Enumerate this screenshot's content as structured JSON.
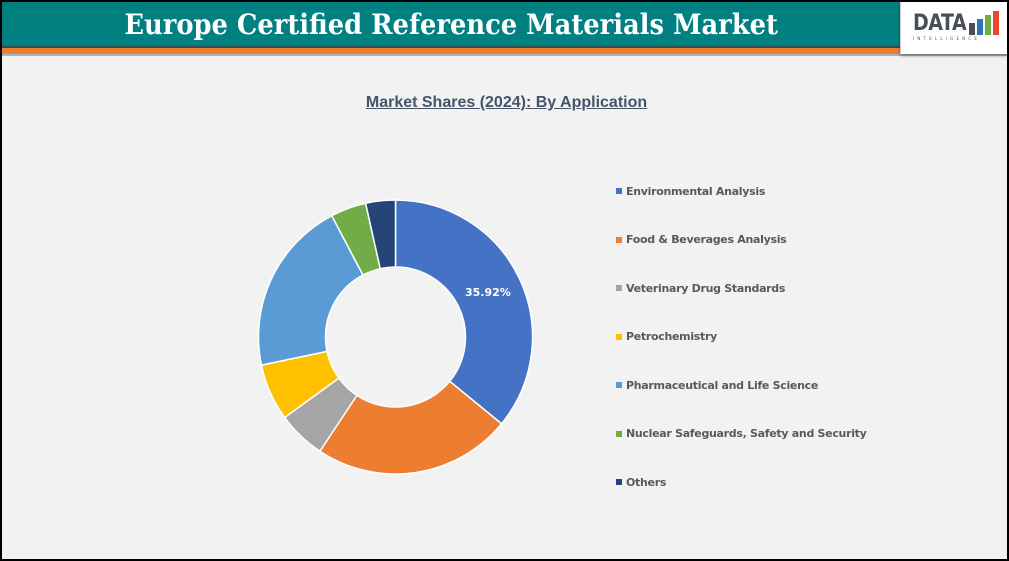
{
  "header": {
    "title": "Europe Certified Reference Materials Market",
    "logo": {
      "main": "DATA",
      "sub": "INTELLIGENCE"
    }
  },
  "colors": {
    "header_bg": "#008080",
    "accent_orange": "#ed7d31",
    "background": "#f2f2f2"
  },
  "chart_data": {
    "type": "pie",
    "variant": "donut",
    "title": "Market Shares (2024): By Application",
    "categories": [
      "Environmental Analysis",
      "Food & Beverages Analysis",
      "Veterinary Drug Standards",
      "Petrochemistry",
      "Pharmaceutical and Life Science",
      "Nuclear Safeguards, Safety and Security",
      "Others"
    ],
    "values": [
      35.92,
      23.4,
      5.7,
      6.7,
      20.6,
      4.2,
      3.5
    ],
    "colors": [
      "#4472c4",
      "#ed7d31",
      "#a5a5a5",
      "#ffc000",
      "#5b9bd5",
      "#70ad47",
      "#264478"
    ],
    "data_labels": [
      {
        "category": "Environmental Analysis",
        "text": "35.92%"
      }
    ],
    "legend_position": "right",
    "units": "%"
  }
}
